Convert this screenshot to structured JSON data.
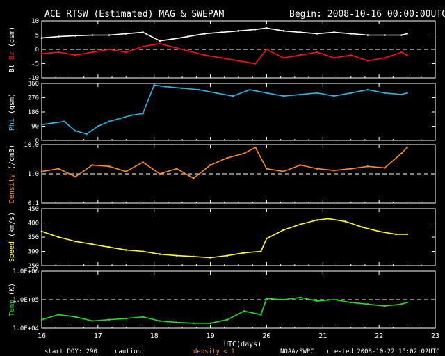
{
  "header": {
    "title": "ACE RTSW (Estimated) MAG & SWEPAM",
    "begin": "Begin: 2008-10-16 00:00:00UTC"
  },
  "footer": {
    "start_doy": "start DOY: 290",
    "caution": "caution:",
    "density_note": "density < 1",
    "agency": "NOAA/SWPC",
    "created": "created:2008-10-22 15:02:02UTC"
  },
  "colors": {
    "bt": "#ffffff",
    "bz": "#ff1010",
    "phi": "#29b6e6",
    "density": "#ff8c1a",
    "speed": "#ffff1a",
    "temp": "#22dd22",
    "axes": "#ffffff",
    "background": "#000000"
  },
  "chart_data": {
    "type": "line",
    "xlabel": "UTC(days)",
    "x_ticks": [
      "16",
      "17",
      "18",
      "19",
      "20",
      "21",
      "22",
      "23"
    ],
    "xlim": [
      16,
      23
    ],
    "panels": [
      {
        "id": "mag",
        "ylabel_parts": [
          "Bt",
          "Bz",
          "(gsm)"
        ],
        "ylim": [
          -10,
          10
        ],
        "y_ticks": [
          "10",
          "5",
          "0",
          "-5",
          "-10"
        ],
        "reference_line": 0,
        "series": [
          {
            "name": "Bt",
            "color": "#ffffff",
            "x": [
              16.0,
              16.3,
              16.6,
              16.9,
              17.2,
              17.5,
              17.8,
              18.1,
              18.3,
              18.6,
              18.9,
              19.2,
              19.5,
              19.8,
              20.0,
              20.3,
              20.6,
              20.9,
              21.2,
              21.5,
              21.8,
              22.1,
              22.4,
              22.5
            ],
            "y": [
              4,
              4.5,
              4.8,
              5,
              5,
              5.5,
              6,
              3,
              3.5,
              4.5,
              5.5,
              6,
              6.5,
              7,
              7.5,
              6.5,
              6,
              5.5,
              6,
              5.5,
              5,
              5,
              5,
              5.5
            ]
          },
          {
            "name": "Bz",
            "color": "#ff1010",
            "x": [
              16.0,
              16.3,
              16.6,
              16.9,
              17.2,
              17.5,
              17.8,
              18.1,
              18.3,
              18.6,
              18.9,
              19.2,
              19.5,
              19.8,
              20.0,
              20.3,
              20.6,
              20.9,
              21.2,
              21.5,
              21.8,
              22.1,
              22.4,
              22.5
            ],
            "y": [
              -1.5,
              -1,
              -2,
              -1,
              0,
              -1,
              1,
              2,
              1,
              -0.5,
              -2,
              -3,
              -4,
              -5,
              0,
              -3,
              -2,
              -1,
              -3,
              -2,
              -4,
              -3,
              -1,
              -2
            ]
          }
        ]
      },
      {
        "id": "phi",
        "ylabel_parts": [
          "Phi",
          "(gsm)"
        ],
        "ylim": [
          0,
          360
        ],
        "y_ticks": [
          "360",
          "270",
          "180",
          "90",
          "0"
        ],
        "series": [
          {
            "name": "Phi",
            "color": "#29b6e6",
            "x": [
              16.0,
              16.2,
              16.4,
              16.6,
              16.8,
              17.0,
              17.2,
              17.4,
              17.6,
              17.8,
              18.0,
              18.2,
              18.5,
              18.8,
              19.1,
              19.4,
              19.7,
              20.0,
              20.3,
              20.6,
              20.9,
              21.2,
              21.5,
              21.8,
              22.1,
              22.4,
              22.5
            ],
            "y": [
              100,
              110,
              120,
              60,
              40,
              90,
              120,
              140,
              160,
              170,
              350,
              340,
              330,
              320,
              300,
              280,
              320,
              300,
              280,
              290,
              300,
              280,
              300,
              320,
              300,
              290,
              300
            ]
          }
        ]
      },
      {
        "id": "density",
        "ylabel_parts": [
          "Density",
          "(/cm3)"
        ],
        "ylim": [
          0.1,
          10
        ],
        "scale": "log",
        "y_ticks": [
          "10.0",
          "1.0",
          "0.1"
        ],
        "reference_line": 1.0,
        "series": [
          {
            "name": "Density",
            "color": "#ff8c1a",
            "x": [
              16.0,
              16.3,
              16.6,
              16.9,
              17.2,
              17.5,
              17.8,
              18.1,
              18.4,
              18.7,
              19.0,
              19.3,
              19.6,
              19.8,
              20.0,
              20.3,
              20.6,
              20.9,
              21.2,
              21.5,
              21.8,
              22.1,
              22.4,
              22.5
            ],
            "y": [
              1.2,
              1.5,
              0.8,
              2.0,
              1.8,
              1.2,
              2.5,
              1.0,
              1.5,
              0.7,
              2.0,
              3.5,
              5.0,
              8.0,
              1.5,
              1.2,
              2.0,
              1.5,
              1.3,
              1.5,
              1.8,
              1.6,
              5.0,
              8.0
            ]
          }
        ]
      },
      {
        "id": "speed",
        "ylabel_parts": [
          "Speed",
          "(km/s)"
        ],
        "ylim": [
          250,
          450
        ],
        "y_ticks": [
          "450",
          "400",
          "350",
          "300",
          "250"
        ],
        "series": [
          {
            "name": "Speed",
            "color": "#ffff1a",
            "x": [
              16.0,
              16.3,
              16.6,
              16.9,
              17.2,
              17.5,
              17.8,
              18.1,
              18.4,
              18.7,
              19.0,
              19.3,
              19.6,
              19.9,
              20.0,
              20.3,
              20.6,
              20.9,
              21.1,
              21.4,
              21.7,
              22.0,
              22.3,
              22.5
            ],
            "y": [
              370,
              350,
              335,
              325,
              315,
              305,
              300,
              290,
              285,
              282,
              278,
              285,
              295,
              300,
              345,
              375,
              395,
              410,
              415,
              405,
              385,
              370,
              360,
              360
            ]
          }
        ]
      },
      {
        "id": "temp",
        "ylabel_parts": [
          "Temp",
          "(K)"
        ],
        "ylim": [
          10000,
          1000000
        ],
        "scale": "log",
        "y_ticks": [
          "1.0E+06",
          "1.0E+05",
          "1.0E+04"
        ],
        "reference_line": 100000,
        "series": [
          {
            "name": "Temp",
            "color": "#22dd22",
            "x": [
              16.0,
              16.3,
              16.6,
              16.9,
              17.2,
              17.5,
              17.8,
              18.1,
              18.4,
              18.7,
              19.0,
              19.3,
              19.6,
              19.9,
              20.0,
              20.3,
              20.6,
              20.9,
              21.2,
              21.5,
              21.8,
              22.1,
              22.4,
              22.5
            ],
            "y": [
              20000,
              30000,
              25000,
              18000,
              20000,
              22000,
              25000,
              18000,
              16000,
              15000,
              15000,
              20000,
              40000,
              30000,
              110000,
              100000,
              120000,
              90000,
              100000,
              80000,
              70000,
              60000,
              70000,
              80000
            ]
          }
        ]
      }
    ]
  }
}
